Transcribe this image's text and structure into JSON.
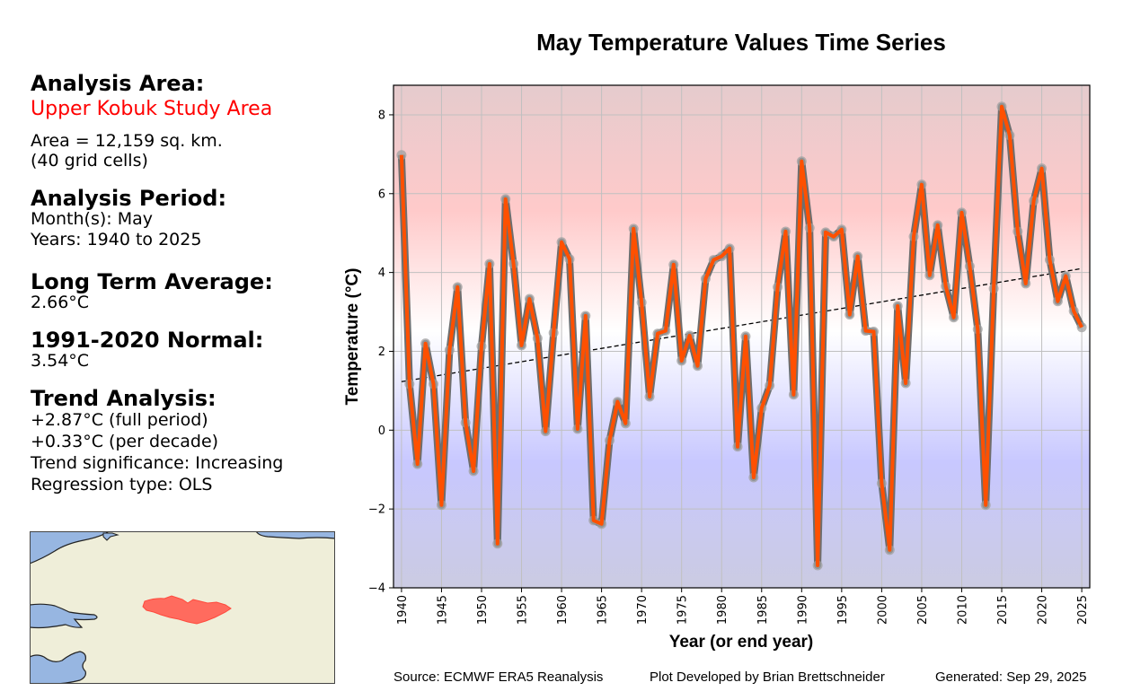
{
  "panel": {
    "analysis_area_heading": "Analysis Area:",
    "area_name": "Upper Kobuk Study Area",
    "area_size": "Area = 12,159 sq. km.",
    "grid_cells": "(40 grid cells)",
    "analysis_period_heading": "Analysis Period:",
    "months": "Month(s): May",
    "years": "Years: 1940 to 2025",
    "long_term_avg_heading": "Long Term Average:",
    "long_term_avg_value": "2.66°C",
    "normal_heading": "1991-2020 Normal:",
    "normal_value": "3.54°C",
    "trend_heading": "Trend Analysis:",
    "trend_full": "+2.87°C (full period)",
    "trend_decade": "+0.33°C (per decade)",
    "trend_significance": "Trend significance: Increasing",
    "regression_type": "Regression type: OLS"
  },
  "map": {
    "land_color": "#efeed9",
    "water_color": "#97b6e1",
    "study_area_color": "#ff6b5e"
  },
  "footer": {
    "source": "Source: ECMWF ERA5 Reanalysis",
    "developer": "Plot Developed by Brian Brettschneider",
    "generated": "Generated: Sep 29, 2025"
  },
  "colors": {
    "line": "#ff5000",
    "line_outline": "#6e6e6e",
    "marker": "#a0a0a0",
    "warm": "#ffc8c8",
    "cold": "#c8c8ff",
    "grid": "#c0c0c0"
  },
  "chart_data": {
    "type": "line",
    "title": "May Temperature Values Time Series",
    "xlabel": "Year (or end year)",
    "ylabel": "Temperature (°C)",
    "xlim": [
      1939,
      2026
    ],
    "ylim": [
      -4,
      8.75
    ],
    "xticks": [
      1940,
      1945,
      1950,
      1955,
      1960,
      1965,
      1970,
      1975,
      1980,
      1985,
      1990,
      1995,
      2000,
      2005,
      2010,
      2015,
      2020,
      2025
    ],
    "yticks": [
      -4,
      -2,
      0,
      2,
      4,
      6,
      8
    ],
    "ytick_labels": [
      "−4",
      "−2",
      "0",
      "2",
      "4",
      "6",
      "8"
    ],
    "grid": true,
    "x": [
      1940,
      1941,
      1942,
      1943,
      1944,
      1945,
      1946,
      1947,
      1948,
      1949,
      1950,
      1951,
      1952,
      1953,
      1954,
      1955,
      1956,
      1957,
      1958,
      1959,
      1960,
      1961,
      1962,
      1963,
      1964,
      1965,
      1966,
      1967,
      1968,
      1969,
      1970,
      1971,
      1972,
      1973,
      1974,
      1975,
      1976,
      1977,
      1978,
      1979,
      1980,
      1981,
      1982,
      1983,
      1984,
      1985,
      1986,
      1987,
      1988,
      1989,
      1990,
      1991,
      1992,
      1993,
      1994,
      1995,
      1996,
      1997,
      1998,
      1999,
      2000,
      2001,
      2002,
      2003,
      2004,
      2005,
      2006,
      2007,
      2008,
      2009,
      2010,
      2011,
      2012,
      2013,
      2014,
      2015,
      2016,
      2017,
      2018,
      2019,
      2020,
      2021,
      2022,
      2023,
      2024,
      2025
    ],
    "series": [
      {
        "name": "May Temperature",
        "values": [
          6.98,
          1.17,
          -0.86,
          2.2,
          1.17,
          -1.9,
          2.03,
          3.63,
          0.19,
          -1.04,
          2.13,
          4.22,
          -2.88,
          5.86,
          4.22,
          2.15,
          3.33,
          2.33,
          -0.03,
          2.47,
          4.77,
          4.34,
          0.03,
          2.9,
          -2.29,
          -2.38,
          -0.26,
          0.72,
          0.17,
          5.11,
          3.24,
          0.85,
          2.45,
          2.52,
          4.2,
          1.76,
          2.4,
          1.63,
          3.84,
          4.32,
          4.41,
          4.61,
          -0.42,
          2.38,
          -1.2,
          0.56,
          1.13,
          3.63,
          5.04,
          0.9,
          6.82,
          5.13,
          -3.43,
          5.02,
          4.91,
          5.09,
          2.93,
          4.41,
          2.52,
          2.5,
          -1.35,
          -3.04,
          3.15,
          1.19,
          4.91,
          6.23,
          3.93,
          5.2,
          3.65,
          2.86,
          5.52,
          4.16,
          2.56,
          -1.9,
          3.59,
          8.21,
          7.48,
          5.04,
          3.72,
          5.82,
          6.64,
          4.32,
          3.27,
          3.91,
          3.02,
          2.61
        ]
      }
    ],
    "trendline": {
      "name": "OLS trend",
      "x": [
        1940,
        2025
      ],
      "y": [
        1.23,
        4.1
      ]
    }
  }
}
